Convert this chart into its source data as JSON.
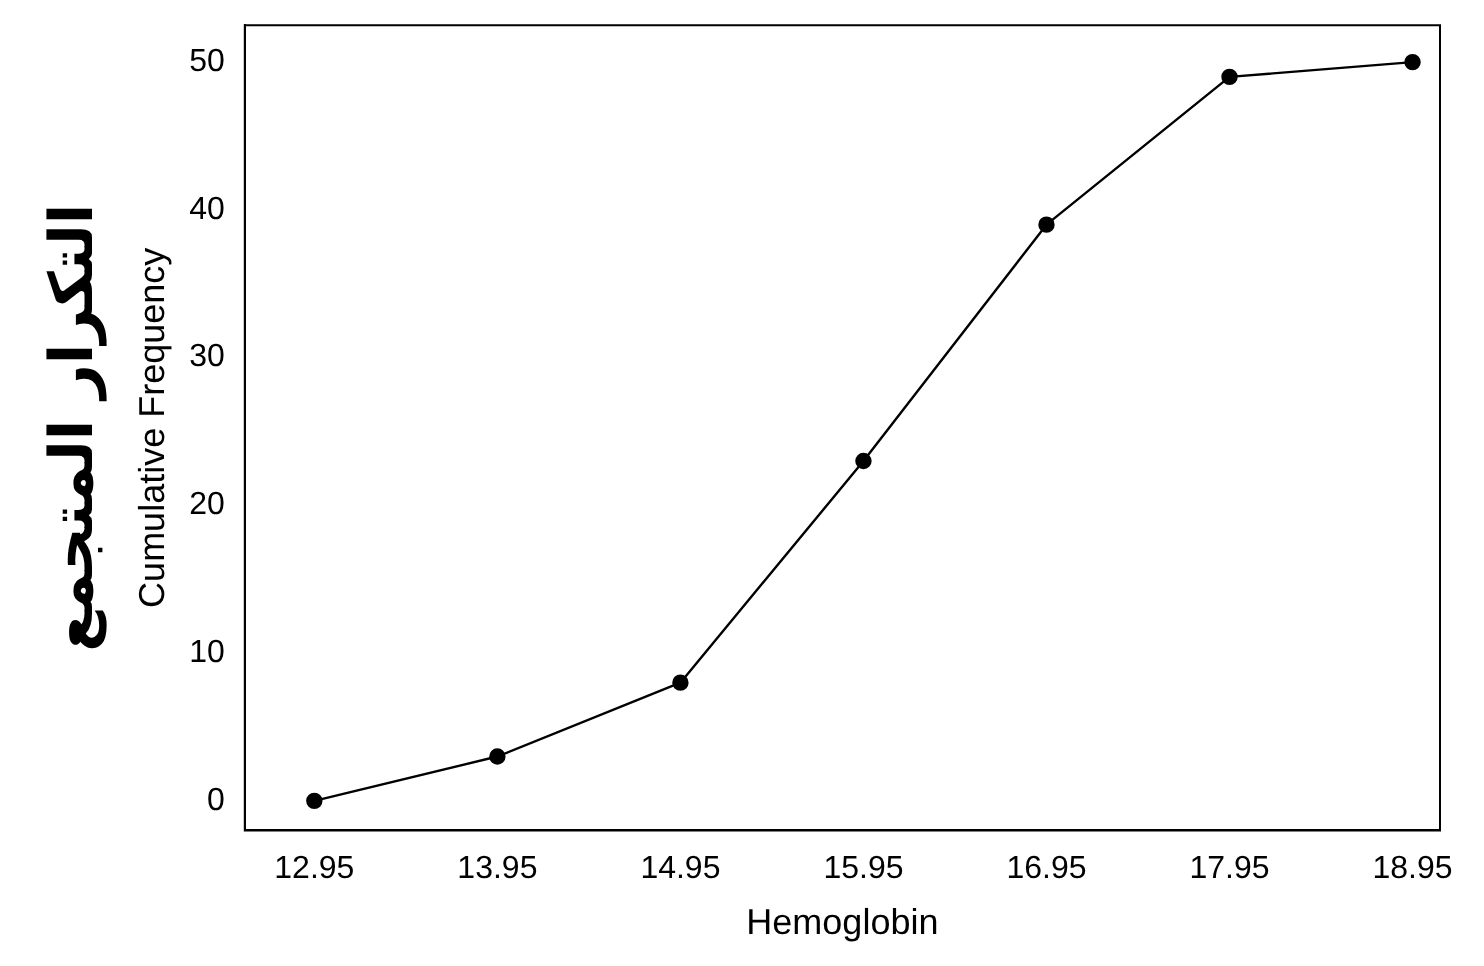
{
  "chart_data": {
    "type": "line",
    "xlabel": "Hemoglobin",
    "ylabel": "Cumulative Frequency",
    "annotations": [
      "التكرار المتجمع"
    ],
    "x": [
      12.95,
      13.95,
      14.95,
      15.95,
      16.95,
      17.95,
      18.95
    ],
    "series": [
      {
        "color": "#000000",
        "values": [
          0,
          3,
          8,
          23,
          39,
          49,
          50
        ]
      }
    ],
    "xlim": [
      12.57,
      19.1
    ],
    "xticks": [
      12.95,
      13.95,
      14.95,
      15.95,
      16.95,
      17.95,
      18.95
    ],
    "ylim": [
      -2,
      52.5
    ],
    "yticks": [
      0,
      10,
      20,
      30,
      40,
      50
    ],
    "grid": false,
    "legend": false,
    "marker": "circle",
    "line_style": "solid"
  }
}
